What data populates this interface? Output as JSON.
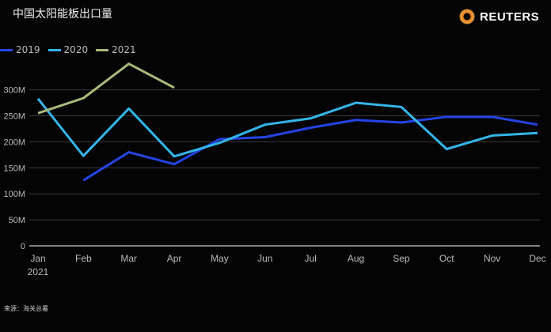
{
  "title": "中国太阳能板出口量",
  "brand": "REUTERS",
  "source": "来源：海关总署",
  "chart_data": {
    "type": "line",
    "title": "中国太阳能板出口量",
    "categories": [
      "Jan",
      "Feb",
      "Mar",
      "Apr",
      "May",
      "Jun",
      "Jul",
      "Aug",
      "Sep",
      "Oct",
      "Nov",
      "Dec"
    ],
    "x_sublabel": "2021",
    "yticks": [
      0,
      50,
      100,
      150,
      200,
      250,
      300
    ],
    "ytick_labels": [
      "0",
      "50M",
      "100M",
      "150M",
      "200M",
      "250M",
      "300M"
    ],
    "ylim": [
      0,
      350
    ],
    "grid": true,
    "legend_position": "top-left",
    "series": [
      {
        "name": "2019",
        "color": "#2544e6",
        "values": [
          null,
          126,
          180,
          157,
          205,
          209,
          227,
          242,
          237,
          248,
          248,
          233
        ]
      },
      {
        "name": "2020",
        "color": "#35b4ea",
        "values": [
          283,
          173,
          264,
          172,
          198,
          233,
          245,
          275,
          267,
          186,
          212,
          217
        ]
      },
      {
        "name": "2021",
        "color": "#a9ba7c",
        "values": [
          255,
          284,
          350,
          304,
          null,
          null,
          null,
          null,
          null,
          null,
          null,
          null
        ]
      }
    ]
  }
}
